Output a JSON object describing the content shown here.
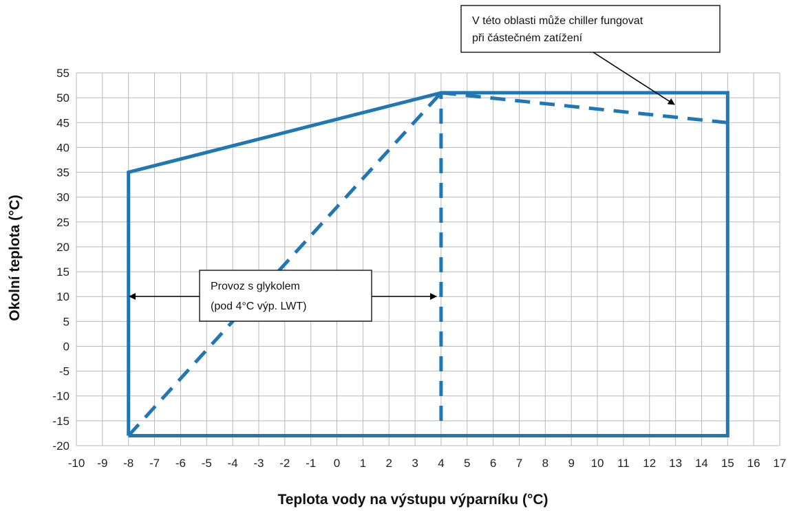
{
  "chart_data": {
    "type": "line",
    "title": "",
    "xlabel": "Teplota vody na výstupu výparníku (°C)",
    "ylabel": "Okolní teplota (°C)",
    "xlim": [
      -10,
      17
    ],
    "ylim": [
      -20,
      55
    ],
    "x_ticks": [
      "-10",
      "-9",
      "-8",
      "-7",
      "-6",
      "-5",
      "-4",
      "-3",
      "-2",
      "-1",
      "0",
      "1",
      "2",
      "3",
      "4",
      "5",
      "6",
      "7",
      "8",
      "9",
      "10",
      "11",
      "12",
      "13",
      "14",
      "15",
      "16",
      "17"
    ],
    "y_ticks": [
      "55",
      "50",
      "45",
      "40",
      "35",
      "30",
      "25",
      "20",
      "15",
      "10",
      "5",
      "0",
      "-5",
      "-10",
      "-15",
      "-20"
    ],
    "grid": true,
    "series": [
      {
        "style": "solid",
        "color": "#1f77b4",
        "x": [
          -8,
          -8,
          4,
          15,
          15,
          -8
        ],
        "y": [
          -18,
          35,
          51,
          51,
          -18,
          -18
        ]
      },
      {
        "style": "dashed",
        "color": "#1f77b4",
        "x": [
          -8,
          4
        ],
        "y": [
          -18,
          51
        ]
      },
      {
        "style": "dashed",
        "color": "#1f77b4",
        "x": [
          4,
          4
        ],
        "y": [
          -15,
          51
        ]
      },
      {
        "style": "dashed",
        "color": "#1f77b4",
        "x": [
          4,
          15
        ],
        "y": [
          51,
          45
        ]
      }
    ],
    "annotations": [
      {
        "name": "partial-load",
        "lines": [
          "V této oblasti může chiller fungovat",
          "při částečném zatížení"
        ]
      },
      {
        "name": "glycol",
        "lines": [
          "Provoz s glykolem",
          "(pod 4°C výp. LWT)"
        ]
      }
    ]
  }
}
